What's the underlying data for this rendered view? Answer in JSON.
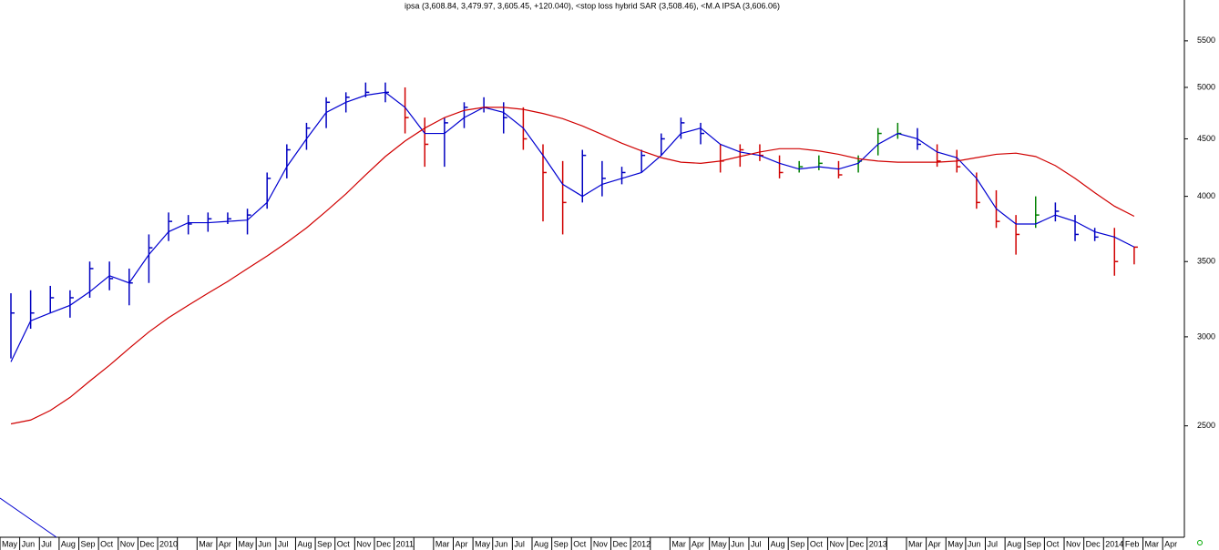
{
  "chart_data": {
    "type": "ohlc",
    "title": "ipsa (3,608.84, 3,479.97, 3,605.45, +120.040), <stop loss hybrid SAR (3,508.46), <M.A IPSA (3,606.06)",
    "log_scale": true,
    "ylim": [
      1990,
      5980
    ],
    "yticks": [
      2500,
      3000,
      3500,
      4000,
      4500,
      5000,
      5500
    ],
    "categories": [
      "May",
      "Jun",
      "Jul",
      "Aug",
      "Sep",
      "Oct",
      "Nov",
      "Dec",
      "2010",
      null,
      "Mar",
      "Apr",
      "May",
      "Jun",
      "Jul",
      "Aug",
      "Sep",
      "Oct",
      "Nov",
      "Dec",
      "2011",
      null,
      "Mar",
      "Apr",
      "May",
      "Jun",
      "Jul",
      "Aug",
      "Sep",
      "Oct",
      "Nov",
      "Dec",
      "2012",
      null,
      "Mar",
      "Apr",
      "May",
      "Jun",
      "Jul",
      "Aug",
      "Sep",
      "Oct",
      "Nov",
      "Dec",
      "2013",
      null,
      "Mar",
      "Apr",
      "May",
      "Jun",
      "Jul",
      "Aug",
      "Sep",
      "Oct",
      "Nov",
      "Dec",
      "2014",
      "Feb",
      "Mar",
      "Apr"
    ],
    "bars": {
      "name": "ipsa",
      "high": [
        3280,
        3300,
        3330,
        3300,
        3500,
        3500,
        3450,
        3700,
        3870,
        3850,
        3870,
        3870,
        3900,
        4200,
        4450,
        4650,
        4900,
        4950,
        5050,
        5050,
        5000,
        4700,
        4700,
        4850,
        4900,
        4850,
        4800,
        4450,
        4300,
        4400,
        4300,
        4250,
        4400,
        4550,
        4700,
        4650,
        4450,
        4450,
        4450,
        4350,
        4300,
        4350,
        4300,
        4350,
        4600,
        4650,
        4600,
        4450,
        4400,
        4200,
        4050,
        3850,
        4000,
        3950,
        3850,
        3750,
        3750,
        3609,
        null,
        null
      ],
      "low": [
        2870,
        3050,
        3150,
        3120,
        3250,
        3300,
        3200,
        3350,
        3650,
        3700,
        3720,
        3780,
        3700,
        3900,
        4150,
        4400,
        4600,
        4750,
        4900,
        4850,
        4550,
        4250,
        4250,
        4600,
        4750,
        4550,
        4400,
        3800,
        3700,
        3950,
        4000,
        4100,
        4200,
        4350,
        4500,
        4450,
        4200,
        4250,
        4300,
        4150,
        4200,
        4220,
        4150,
        4200,
        4350,
        4500,
        4400,
        4250,
        4200,
        3900,
        3750,
        3550,
        3750,
        3800,
        3650,
        3650,
        3400,
        3480,
        null,
        null
      ],
      "close": [
        3150,
        3150,
        3250,
        3250,
        3450,
        3380,
        3350,
        3600,
        3800,
        3780,
        3820,
        3820,
        3850,
        4150,
        4400,
        4600,
        4850,
        4900,
        4950,
        4950,
        4700,
        4450,
        4650,
        4800,
        4800,
        4700,
        4500,
        4200,
        3950,
        4350,
        4150,
        4200,
        4350,
        4500,
        4650,
        4550,
        4300,
        4400,
        4350,
        4200,
        4250,
        4280,
        4180,
        4300,
        4550,
        4550,
        4450,
        4300,
        4250,
        3950,
        3800,
        3700,
        3850,
        3880,
        3700,
        3680,
        3500,
        3605,
        null,
        null
      ],
      "colors": [
        "#0000c0",
        "#0000c0",
        "#0000c0",
        "#0000c0",
        "#0000c0",
        "#0000c0",
        "#0000c0",
        "#0000c0",
        "#0000c0",
        "#0000c0",
        "#0000c0",
        "#0000c0",
        "#0000c0",
        "#0000c0",
        "#0000c0",
        "#0000c0",
        "#0000c0",
        "#0000c0",
        "#0000c0",
        "#0000c0",
        "#d00000",
        "#d00000",
        "#0000c0",
        "#0000c0",
        "#0000c0",
        "#0000c0",
        "#d00000",
        "#d00000",
        "#d00000",
        "#0000c0",
        "#0000c0",
        "#0000c0",
        "#0000c0",
        "#0000c0",
        "#0000c0",
        "#0000c0",
        "#d00000",
        "#d00000",
        "#d00000",
        "#d00000",
        "#008000",
        "#008000",
        "#d00000",
        "#008000",
        "#008000",
        "#008000",
        "#0000c0",
        "#d00000",
        "#d00000",
        "#d00000",
        "#d00000",
        "#d00000",
        "#008000",
        "#0000c0",
        "#0000c0",
        "#0000c0",
        "#d00000",
        "#d00000",
        null,
        null
      ]
    },
    "series": [
      {
        "color": "#0000d0",
        "values": [
          2850,
          3100,
          3150,
          3200,
          3290,
          3400,
          3350,
          3550,
          3720,
          3790,
          3790,
          3800,
          3810,
          3950,
          4250,
          4500,
          4750,
          4850,
          4920,
          4950,
          4800,
          4550,
          4550,
          4700,
          4800,
          4750,
          4600,
          4350,
          4100,
          4000,
          4100,
          4150,
          4200,
          4350,
          4550,
          4600,
          4450,
          4380,
          4350,
          4280,
          4230,
          4250,
          4230,
          4280,
          4450,
          4550,
          4500,
          4380,
          4330,
          4150,
          3900,
          3780,
          3780,
          3850,
          3800,
          3720,
          3680,
          3606,
          null,
          null
        ]
      },
      {
        "color": "#d00000",
        "values": [
          2510,
          2530,
          2580,
          2650,
          2740,
          2830,
          2930,
          3030,
          3120,
          3200,
          3280,
          3360,
          3450,
          3540,
          3640,
          3750,
          3880,
          4020,
          4180,
          4340,
          4480,
          4600,
          4700,
          4770,
          4800,
          4800,
          4780,
          4740,
          4690,
          4620,
          4540,
          4460,
          4390,
          4330,
          4290,
          4280,
          4300,
          4340,
          4380,
          4410,
          4410,
          4390,
          4360,
          4320,
          4300,
          4290,
          4290,
          4290,
          4300,
          4330,
          4360,
          4370,
          4340,
          4260,
          4150,
          4030,
          3920,
          3840,
          null,
          null
        ]
      }
    ]
  }
}
